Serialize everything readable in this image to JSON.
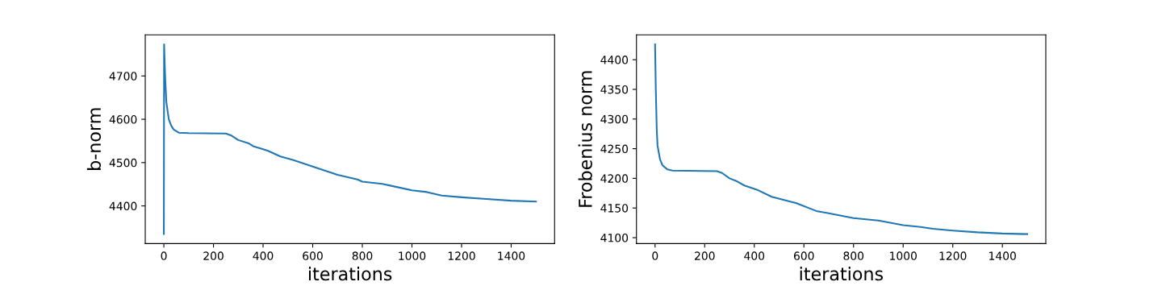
{
  "chart_data": [
    {
      "type": "line",
      "xlabel": "iterations",
      "ylabel": "b-norm",
      "xlim": [
        -75,
        1575
      ],
      "xticks": [
        0,
        200,
        400,
        600,
        800,
        1000,
        1200,
        1400
      ],
      "ylim": [
        4313,
        4795
      ],
      "yticks": [
        4400,
        4500,
        4600,
        4700
      ],
      "grid": false,
      "legend": false,
      "series": [
        {
          "color": "#1f77b4",
          "x": [
            0,
            1,
            5,
            10,
            20,
            30,
            40,
            60,
            100,
            250,
            270,
            300,
            340,
            360,
            400,
            420,
            470,
            520,
            600,
            700,
            780,
            800,
            880,
            920,
            1000,
            1060,
            1120,
            1200,
            1300,
            1400,
            1500
          ],
          "values": [
            4335,
            4773,
            4700,
            4640,
            4600,
            4585,
            4576,
            4569,
            4568,
            4567,
            4563,
            4552,
            4545,
            4538,
            4531,
            4527,
            4514,
            4506,
            4491,
            4472,
            4461,
            4456,
            4451,
            4446,
            4436,
            4432,
            4424,
            4420,
            4416,
            4412,
            4410
          ]
        }
      ]
    },
    {
      "type": "line",
      "xlabel": "iterations",
      "ylabel": "Frobenius norm",
      "xlim": [
        -75,
        1575
      ],
      "xticks": [
        0,
        200,
        400,
        600,
        800,
        1000,
        1200,
        1400
      ],
      "ylim": [
        4090,
        4442
      ],
      "yticks": [
        4100,
        4150,
        4200,
        4250,
        4300,
        4350,
        4400
      ],
      "grid": false,
      "legend": false,
      "series": [
        {
          "color": "#1f77b4",
          "x": [
            0,
            3,
            7,
            10,
            20,
            30,
            50,
            70,
            250,
            270,
            300,
            330,
            360,
            410,
            470,
            570,
            650,
            700,
            800,
            900,
            1000,
            1070,
            1120,
            1200,
            1300,
            1400,
            1500
          ],
          "values": [
            4426,
            4350,
            4280,
            4255,
            4232,
            4222,
            4215,
            4213,
            4212,
            4209,
            4200,
            4195,
            4188,
            4181,
            4169,
            4158,
            4145,
            4141,
            4133,
            4129,
            4121,
            4118,
            4115,
            4112,
            4109,
            4107,
            4106
          ]
        }
      ]
    }
  ]
}
